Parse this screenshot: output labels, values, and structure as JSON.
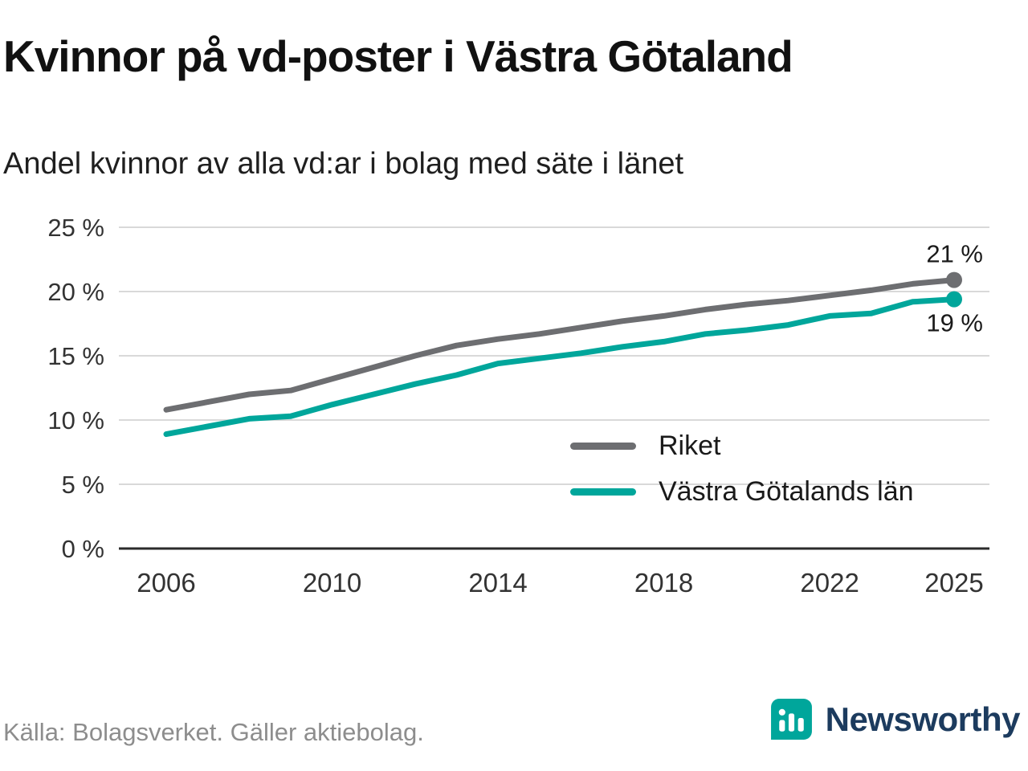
{
  "header": {
    "title": "Kvinnor på vd-poster i Västra Götaland",
    "subtitle": "Andel kvinnor av alla vd:ar i bolag med säte i länet"
  },
  "chart_data": {
    "type": "line",
    "title": "Kvinnor på vd-poster i Västra Götaland",
    "xlabel": "",
    "ylabel": "",
    "x": [
      2006,
      2007,
      2008,
      2009,
      2010,
      2011,
      2012,
      2013,
      2014,
      2015,
      2016,
      2017,
      2018,
      2019,
      2020,
      2021,
      2022,
      2023,
      2024,
      2025
    ],
    "series": [
      {
        "name": "Riket",
        "color": "#6d6e71",
        "values": [
          10.8,
          11.4,
          12.0,
          12.3,
          13.2,
          14.1,
          15.0,
          15.8,
          16.3,
          16.7,
          17.2,
          17.7,
          18.1,
          18.6,
          19.0,
          19.3,
          19.7,
          20.1,
          20.6,
          20.9
        ],
        "end_label": "21 %"
      },
      {
        "name": "Västra Götalands län",
        "color": "#00a69b",
        "values": [
          8.9,
          9.5,
          10.1,
          10.3,
          11.2,
          12.0,
          12.8,
          13.5,
          14.4,
          14.8,
          15.2,
          15.7,
          16.1,
          16.7,
          17.0,
          17.4,
          18.1,
          18.3,
          19.2,
          19.4
        ],
        "end_label": "19 %"
      }
    ],
    "ylim": [
      0,
      25
    ],
    "yticks": [
      0,
      5,
      10,
      15,
      20,
      25
    ],
    "ytick_labels": [
      "0 %",
      "5 %",
      "10 %",
      "15 %",
      "20 %",
      "25 %"
    ],
    "xtick_years": [
      2006,
      2010,
      2014,
      2018,
      2022,
      2025
    ],
    "grid": "horizontal",
    "legend_position": "inside-right"
  },
  "footer": {
    "source": "Källa: Bolagsverket. Gäller aktiebolag.",
    "brand": "Newsworthy"
  },
  "colors": {
    "riket": "#6d6e71",
    "vastra_gotaland": "#00a69b",
    "grid": "#d9d9d9",
    "axis": "#2b2b2b",
    "text": "#1a1a1a",
    "muted": "#8d8d8d",
    "brand_teal": "#00a69b",
    "brand_navy": "#1c3b5e"
  }
}
